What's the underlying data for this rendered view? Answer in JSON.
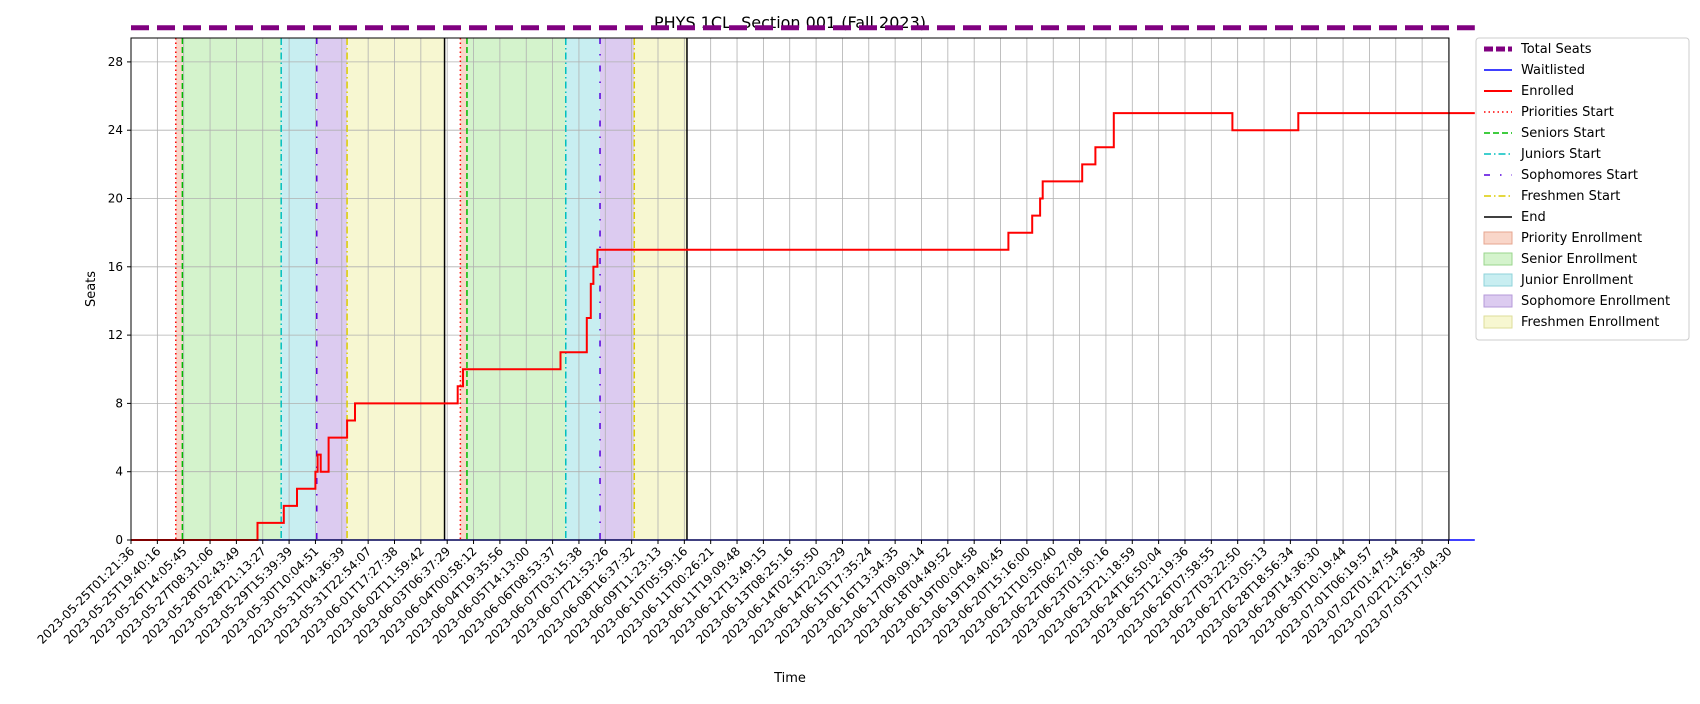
{
  "chart_data": {
    "type": "line",
    "title": "PHYS 1CL, Section 001 (Fall 2023)",
    "xlabel": "Time",
    "ylabel": "Seats",
    "ylim": [
      0,
      29.4
    ],
    "yticks": [
      0,
      4,
      8,
      12,
      16,
      20,
      24,
      28
    ],
    "grid": true,
    "legend_position": "outside-right",
    "x_ticks": [
      "2023-05-25T01:21:36",
      "2023-05-25T19:40:16",
      "2023-05-26T14:05:45",
      "2023-05-27T08:31:06",
      "2023-05-28T02:43:49",
      "2023-05-28T21:13:27",
      "2023-05-29T15:39:39",
      "2023-05-30T10:04:51",
      "2023-05-31T04:36:39",
      "2023-05-31T22:54:07",
      "2023-06-01T17:27:38",
      "2023-06-02T11:59:42",
      "2023-06-03T06:37:29",
      "2023-06-04T00:58:12",
      "2023-06-04T19:35:56",
      "2023-06-05T14:13:00",
      "2023-06-06T08:53:37",
      "2023-06-07T03:15:38",
      "2023-06-07T21:53:26",
      "2023-06-08T16:37:32",
      "2023-06-09T11:23:13",
      "2023-06-10T05:59:16",
      "2023-06-11T00:26:21",
      "2023-06-11T19:09:48",
      "2023-06-12T13:49:15",
      "2023-06-13T08:25:16",
      "2023-06-14T02:55:50",
      "2023-06-14T22:03:29",
      "2023-06-15T17:35:24",
      "2023-06-16T13:34:35",
      "2023-06-17T09:09:14",
      "2023-06-18T04:49:52",
      "2023-06-19T00:04:58",
      "2023-06-19T19:40:45",
      "2023-06-20T15:16:00",
      "2023-06-21T10:50:40",
      "2023-06-22T06:27:08",
      "2023-06-23T01:50:16",
      "2023-06-23T21:18:59",
      "2023-06-24T16:50:04",
      "2023-06-25T12:19:36",
      "2023-06-26T07:58:55",
      "2023-06-27T03:22:50",
      "2023-06-27T23:05:13",
      "2023-06-28T18:56:34",
      "2023-06-29T14:36:30",
      "2023-06-30T10:19:44",
      "2023-07-01T06:19:57",
      "2023-07-02T01:47:54",
      "2023-07-02T21:26:38",
      "2023-07-03T17:04:30"
    ],
    "series": [
      {
        "name": "Total Seats",
        "color": "#800080",
        "style": "dashed-thick",
        "x": [
          0,
          51
        ],
        "y": [
          30,
          30
        ]
      },
      {
        "name": "Waitlisted",
        "color": "#0000ff",
        "style": "solid",
        "x": [
          0,
          51
        ],
        "y": [
          0,
          0
        ]
      },
      {
        "name": "Enrolled",
        "color": "#ff0000",
        "style": "solid-step",
        "x": [
          0,
          4.8,
          4.8,
          5.8,
          5.8,
          6.3,
          6.3,
          7.0,
          7.0,
          7.08,
          7.08,
          7.2,
          7.2,
          7.5,
          7.5,
          8.2,
          8.2,
          8.5,
          8.5,
          12.4,
          12.4,
          12.6,
          12.6,
          16.3,
          16.3,
          17.3,
          17.3,
          17.45,
          17.45,
          17.55,
          17.55,
          17.7,
          17.7,
          33.3,
          33.3,
          34.2,
          34.2,
          34.5,
          34.5,
          34.6,
          34.6,
          36.1,
          36.1,
          36.6,
          36.6,
          37.3,
          37.3,
          41.8,
          41.8,
          44.3,
          44.3,
          51
        ],
        "y": [
          0,
          0,
          1,
          1,
          2,
          2,
          3,
          3,
          4,
          4,
          5,
          5,
          4,
          4,
          6,
          6,
          7,
          7,
          8,
          8,
          9,
          9,
          10,
          10,
          11,
          11,
          13,
          13,
          15,
          15,
          16,
          16,
          17,
          17,
          18,
          18,
          19,
          19,
          20,
          20,
          21,
          21,
          22,
          22,
          23,
          23,
          25,
          25,
          24,
          24,
          25,
          25
        ]
      }
    ],
    "markers": [
      {
        "name": "Priorities Start",
        "color": "#ff0000",
        "style": "dotted",
        "x": [
          1.7,
          12.5
        ]
      },
      {
        "name": "Seniors Start",
        "color": "#00bb00",
        "style": "dashed",
        "x": [
          1.95,
          12.75
        ]
      },
      {
        "name": "Juniors Start",
        "color": "#00bfbf",
        "style": "dashdot",
        "x": [
          5.7,
          16.5
        ]
      },
      {
        "name": "Sophomores Start",
        "color": "#5500dd",
        "style": "loosedashdot",
        "x": [
          7.05,
          17.8
        ]
      },
      {
        "name": "Freshmen Start",
        "color": "#dccc00",
        "style": "dashdot",
        "x": [
          8.2,
          19.1
        ]
      },
      {
        "name": "End",
        "color": "#000000",
        "style": "solid",
        "x": [
          11.9,
          21.1
        ]
      }
    ],
    "bands": [
      {
        "name": "Priority Enrollment",
        "color": "#f9d6c9",
        "ranges": [
          [
            1.7,
            1.95
          ],
          [
            12.5,
            12.75
          ]
        ]
      },
      {
        "name": "Senior Enrollment",
        "color": "#d4f3cc",
        "ranges": [
          [
            1.95,
            5.7
          ],
          [
            12.75,
            16.5
          ]
        ]
      },
      {
        "name": "Junior Enrollment",
        "color": "#c8eef1",
        "ranges": [
          [
            5.7,
            7.05
          ],
          [
            16.5,
            17.8
          ]
        ]
      },
      {
        "name": "Sophomore Enrollment",
        "color": "#dccbf0",
        "ranges": [
          [
            7.05,
            8.2
          ],
          [
            17.8,
            19.1
          ]
        ]
      },
      {
        "name": "Freshmen Enrollment",
        "color": "#f7f7d1",
        "ranges": [
          [
            8.2,
            11.9
          ],
          [
            19.1,
            21.1
          ]
        ]
      }
    ],
    "legend": [
      {
        "label": "Total Seats",
        "kind": "line",
        "color": "#800080",
        "style": "dashed-thick"
      },
      {
        "label": "Waitlisted",
        "kind": "line",
        "color": "#0000ff",
        "style": "solid"
      },
      {
        "label": "Enrolled",
        "kind": "line",
        "color": "#ff0000",
        "style": "solid-thick"
      },
      {
        "label": "Priorities Start",
        "kind": "line",
        "color": "#ff0000",
        "style": "dotted"
      },
      {
        "label": "Seniors Start",
        "kind": "line",
        "color": "#00bb00",
        "style": "dashed"
      },
      {
        "label": "Juniors Start",
        "kind": "line",
        "color": "#00bfbf",
        "style": "dashdot"
      },
      {
        "label": "Sophomores Start",
        "kind": "line",
        "color": "#5500dd",
        "style": "loosedashdot"
      },
      {
        "label": "Freshmen Start",
        "kind": "line",
        "color": "#dccc00",
        "style": "dashdot"
      },
      {
        "label": "End",
        "kind": "line",
        "color": "#000000",
        "style": "solid"
      },
      {
        "label": "Priority Enrollment",
        "kind": "patch",
        "color": "#f9d6c9",
        "edge": "#e6a58f"
      },
      {
        "label": "Senior Enrollment",
        "kind": "patch",
        "color": "#d4f3cc",
        "edge": "#9ad68c"
      },
      {
        "label": "Junior Enrollment",
        "kind": "patch",
        "color": "#c8eef1",
        "edge": "#8fd3da"
      },
      {
        "label": "Sophomore Enrollment",
        "kind": "patch",
        "color": "#dccbf0",
        "edge": "#b59ad9"
      },
      {
        "label": "Freshmen Enrollment",
        "kind": "patch",
        "color": "#f7f7d1",
        "edge": "#dede9a"
      }
    ]
  }
}
